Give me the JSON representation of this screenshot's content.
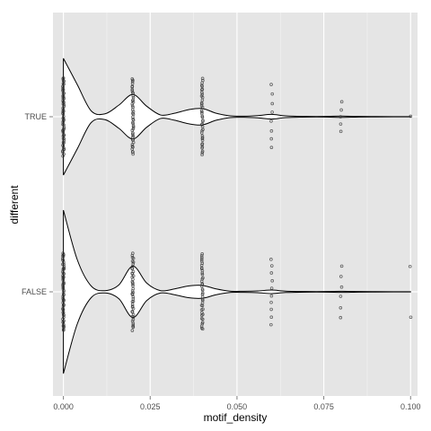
{
  "chart_data": {
    "type": "violin",
    "orientation": "horizontal",
    "xlabel": "motif_density",
    "ylabel": "different",
    "xlim": [
      -0.003,
      0.102
    ],
    "x_ticks": [
      0.0,
      0.025,
      0.05,
      0.075,
      0.1
    ],
    "x_tick_labels": [
      "0.000",
      "0.025",
      "0.050",
      "0.075",
      "0.100"
    ],
    "categories": [
      "TRUE",
      "FALSE"
    ],
    "grid": true,
    "background": "#e5e5e5",
    "grid_color": "#ffffff",
    "violin_color": "#000000",
    "point_color": "#333333",
    "density_profiles": [
      {
        "category": "TRUE",
        "x": [
          0.0,
          0.004,
          0.008,
          0.012,
          0.016,
          0.02,
          0.024,
          0.028,
          0.032,
          0.036,
          0.04,
          0.044,
          0.048,
          0.052,
          0.056,
          0.06,
          0.064,
          0.07,
          0.076,
          0.08,
          0.085,
          0.09,
          0.095,
          0.1
        ],
        "half_width": [
          1.0,
          0.55,
          0.1,
          0.05,
          0.2,
          0.38,
          0.18,
          0.03,
          0.06,
          0.12,
          0.14,
          0.06,
          0.015,
          0.01,
          0.02,
          0.04,
          0.015,
          0.005,
          0.005,
          0.012,
          0.005,
          0.003,
          0.002,
          0.002
        ]
      },
      {
        "category": "FALSE",
        "x": [
          0.0,
          0.004,
          0.008,
          0.012,
          0.016,
          0.02,
          0.024,
          0.028,
          0.032,
          0.036,
          0.04,
          0.044,
          0.048,
          0.052,
          0.056,
          0.06,
          0.064,
          0.07,
          0.076,
          0.08,
          0.085,
          0.09,
          0.095,
          0.1
        ],
        "half_width": [
          1.4,
          0.55,
          0.1,
          0.02,
          0.12,
          0.44,
          0.15,
          0.02,
          0.05,
          0.1,
          0.11,
          0.05,
          0.012,
          0.01,
          0.015,
          0.03,
          0.012,
          0.005,
          0.005,
          0.01,
          0.005,
          0.003,
          0.002,
          0.002
        ]
      }
    ],
    "points": [
      {
        "category": "TRUE",
        "x": 0.0,
        "n": 60,
        "spread": 0.92
      },
      {
        "category": "TRUE",
        "x": 0.02,
        "n": 45,
        "spread": 0.9
      },
      {
        "category": "TRUE",
        "x": 0.04,
        "n": 40,
        "spread": 0.9
      },
      {
        "category": "TRUE",
        "x": 0.06,
        "n": 8,
        "spread": 0.75
      },
      {
        "category": "TRUE",
        "x": 0.08,
        "n": 5,
        "spread": 0.35
      },
      {
        "category": "TRUE",
        "x": 0.1,
        "n": 1,
        "spread": 0.3
      },
      {
        "category": "FALSE",
        "x": 0.0,
        "n": 60,
        "spread": 0.92
      },
      {
        "category": "FALSE",
        "x": 0.02,
        "n": 45,
        "spread": 0.9
      },
      {
        "category": "FALSE",
        "x": 0.04,
        "n": 40,
        "spread": 0.9
      },
      {
        "category": "FALSE",
        "x": 0.06,
        "n": 10,
        "spread": 0.78
      },
      {
        "category": "FALSE",
        "x": 0.08,
        "n": 6,
        "spread": 0.6
      },
      {
        "category": "FALSE",
        "x": 0.1,
        "n": 2,
        "spread": 0.6
      }
    ]
  }
}
